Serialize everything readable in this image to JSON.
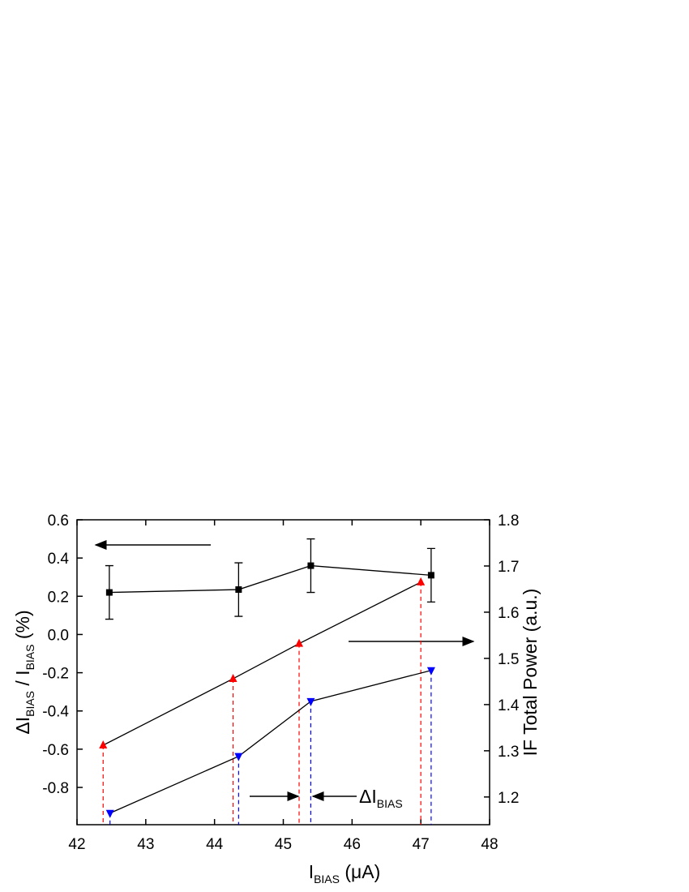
{
  "chart_data": {
    "type": "line",
    "x_label": [
      "I",
      "BIAS",
      " (μA)"
    ],
    "y_label": [
      "ΔI",
      "BIAS",
      " / I",
      "BIAS",
      " (%)"
    ],
    "y2_label": "IF Total Power (a.u.)",
    "annotation": [
      "ΔI",
      "BIAS"
    ],
    "xlim": [
      42,
      48
    ],
    "xticks": [
      42,
      43,
      44,
      45,
      46,
      47,
      48
    ],
    "ylim": [
      -0.995,
      0.6
    ],
    "yticks": [
      -0.8,
      -0.6,
      -0.4,
      -0.2,
      {
        "value": 0,
        "label": "0.0"
      },
      0.2,
      0.4,
      0.6
    ],
    "y2lim": [
      1.14,
      1.8
    ],
    "y2ticks": [
      1.2,
      1.3,
      1.4,
      1.5,
      1.6,
      1.7,
      1.8
    ],
    "series": [
      {
        "color": "#000000",
        "marker": "square",
        "x": [
          42.47,
          44.35,
          45.4,
          47.15
        ],
        "values": [
          0.22,
          0.235,
          0.36,
          0.31
        ],
        "errors": [
          0.14,
          0.14,
          0.14,
          0.14
        ]
      },
      {
        "color": "#ff0000",
        "marker": "triangle-up",
        "axis": "y2",
        "x": [
          42.38,
          44.27,
          45.23,
          47.0
        ],
        "values": [
          1.312,
          1.456,
          1.532,
          1.665
        ]
      },
      {
        "color": "#0000ff",
        "marker": "triangle-down",
        "axis": "y2",
        "x": [
          42.48,
          44.35,
          45.4,
          47.15
        ],
        "values": [
          1.165,
          1.288,
          1.407,
          1.474
        ]
      }
    ]
  }
}
